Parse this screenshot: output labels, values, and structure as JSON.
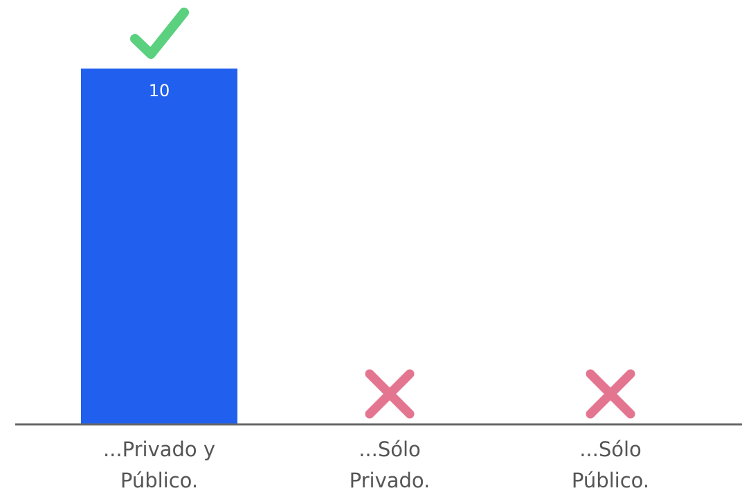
{
  "chart_data": {
    "type": "bar",
    "categories": [
      [
        "...Privado y",
        "Público."
      ],
      [
        "...Sólo",
        "Privado."
      ],
      [
        "...Sólo",
        "Público."
      ]
    ],
    "values": [
      10,
      0,
      0
    ],
    "data_labels": [
      "10",
      "",
      ""
    ],
    "markers": [
      "check",
      "cross",
      "cross"
    ],
    "ylim": [
      0,
      10
    ],
    "grid": false,
    "legend": "none"
  },
  "colors": {
    "bar": "#2160ee",
    "check": "#5bd07f",
    "cross": "#e47590",
    "axis": "#666666",
    "category_text": "#555555",
    "data_label_text": "#ffffff"
  }
}
